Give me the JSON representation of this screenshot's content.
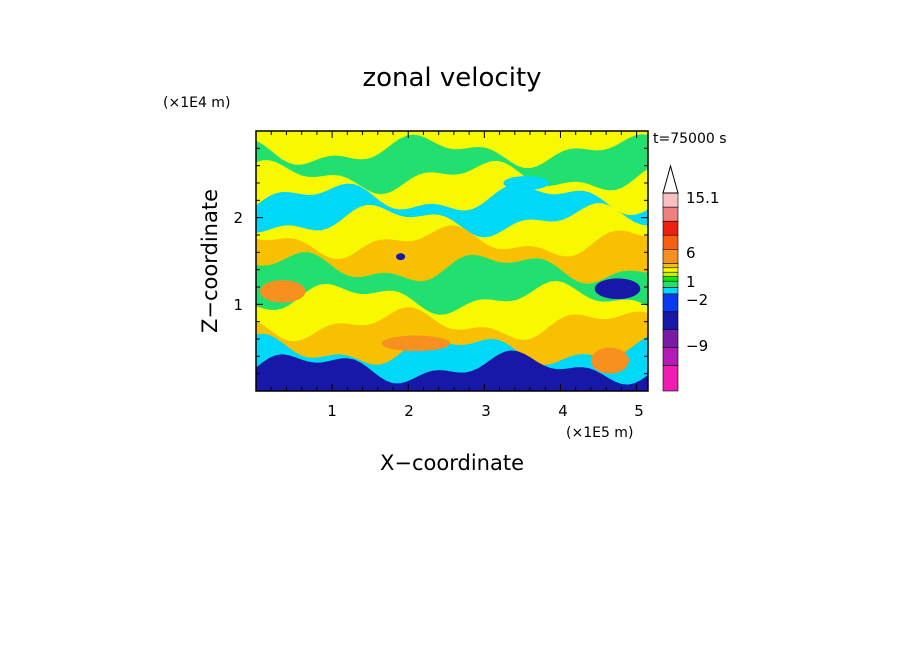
{
  "chart_data": {
    "type": "heatmap",
    "title": "zonal velocity",
    "xlabel": "X−coordinate",
    "ylabel": "Z−coordinate",
    "x_unit": "(×1E5 m)",
    "y_unit": "(×1E4 m)",
    "time_label": "t=75000 s",
    "x_ticks": [
      "1",
      "2",
      "3",
      "4",
      "5"
    ],
    "y_ticks": [
      "1",
      "2"
    ],
    "xlim": [
      0,
      5.15
    ],
    "ylim": [
      0,
      3.0
    ],
    "colorbar": {
      "tick_labels": [
        "15.1",
        "6",
        "1",
        "−2",
        "−9"
      ],
      "colors": [
        "#f01bb4",
        "#b41ab4",
        "#7a1aa6",
        "#1818a8",
        "#0a3af0",
        "#00d8f8",
        "#22e070",
        "#00f000",
        "#c8f000",
        "#f8f800",
        "#f8c000",
        "#f89020",
        "#f86010",
        "#f02010",
        "#f08080",
        "#f8c0c0"
      ],
      "extend": "max"
    },
    "bands": [
      {
        "z": 0.05,
        "color": "#1818a8"
      },
      {
        "z": 0.25,
        "color": "#00d8f8"
      },
      {
        "z": 0.55,
        "color": "#f8c000"
      },
      {
        "z": 0.85,
        "color": "#f8f800"
      },
      {
        "z": 1.2,
        "color": "#22e070"
      },
      {
        "z": 1.5,
        "color": "#f8c000"
      },
      {
        "z": 1.75,
        "color": "#f8f800"
      },
      {
        "z": 2.0,
        "color": "#00d8f8"
      },
      {
        "z": 2.25,
        "color": "#f8f800"
      },
      {
        "z": 2.55,
        "color": "#22e070"
      },
      {
        "z": 2.85,
        "color": "#f8f800"
      }
    ]
  }
}
